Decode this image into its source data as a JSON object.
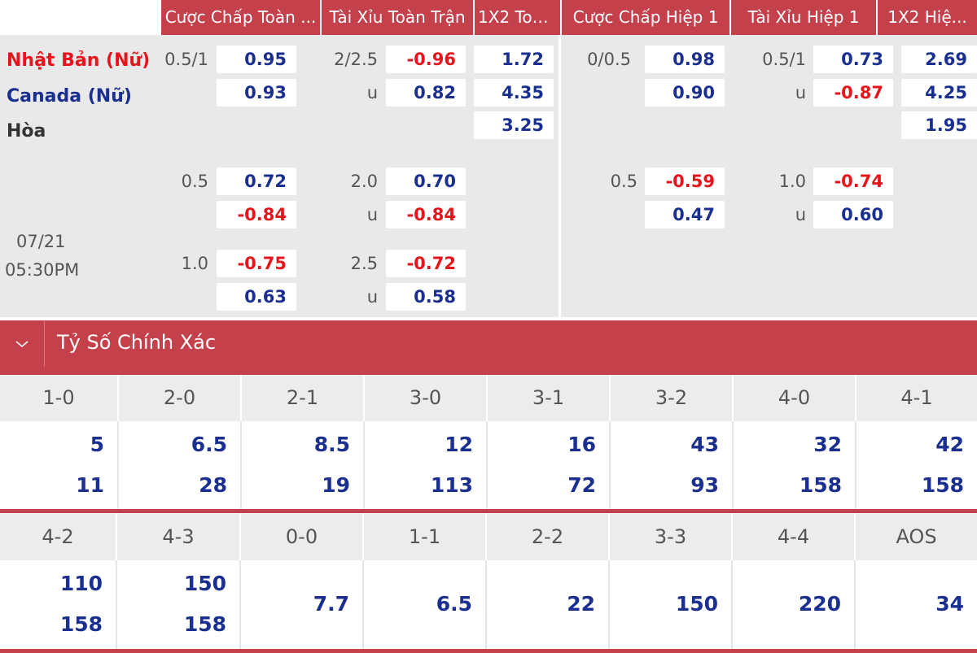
{
  "headers": [
    "Cược Chấp Toàn ...",
    "Tài Xỉu Toàn Trận",
    "1X2 Toà...",
    "Cược Chấp Hiệp 1",
    "Tài Xỉu Hiệp 1",
    "1X2 Hiệ..."
  ],
  "teams": {
    "home": "Nhật Bản (Nữ)",
    "away": "Canada (Nữ)",
    "draw": "Hòa"
  },
  "match_date": "07/21",
  "match_time": "05:30PM",
  "full_time": {
    "handicap": [
      {
        "line": "0.5/1",
        "home": "0.95",
        "away": "0.93"
      },
      {
        "line": "0.5",
        "home": "0.72",
        "away": "-0.84"
      },
      {
        "line": "1.0",
        "home": "-0.75",
        "away": "0.63"
      }
    ],
    "over_under": [
      {
        "line": "2/2.5",
        "over": "-0.96",
        "under_label": "u",
        "under": "0.82"
      },
      {
        "line": "2.0",
        "over": "0.70",
        "under_label": "u",
        "under": "-0.84"
      },
      {
        "line": "2.5",
        "over": "-0.72",
        "under_label": "u",
        "under": "0.58"
      }
    ],
    "x12": {
      "home": "1.72",
      "away": "4.35",
      "draw": "3.25"
    }
  },
  "first_half": {
    "handicap": [
      {
        "line": "0/0.5",
        "home": "0.98",
        "away": "0.90"
      },
      {
        "line": "0.5",
        "home": "-0.59",
        "away": "0.47"
      }
    ],
    "over_under": [
      {
        "line": "0.5/1",
        "over": "0.73",
        "under_label": "u",
        "under": "-0.87"
      },
      {
        "line": "1.0",
        "over": "-0.74",
        "under_label": "u",
        "under": "0.60"
      }
    ],
    "x12": {
      "home": "2.69",
      "away": "4.25",
      "draw": "1.95"
    }
  },
  "exact_score": {
    "title": "Tỷ Số Chính Xác",
    "row1": [
      {
        "score": "1-0",
        "a": "5",
        "b": "11"
      },
      {
        "score": "2-0",
        "a": "6.5",
        "b": "28"
      },
      {
        "score": "2-1",
        "a": "8.5",
        "b": "19"
      },
      {
        "score": "3-0",
        "a": "12",
        "b": "113"
      },
      {
        "score": "3-1",
        "a": "16",
        "b": "72"
      },
      {
        "score": "3-2",
        "a": "43",
        "b": "93"
      },
      {
        "score": "4-0",
        "a": "32",
        "b": "158"
      },
      {
        "score": "4-1",
        "a": "42",
        "b": "158"
      }
    ],
    "row2": [
      {
        "score": "4-2",
        "a": "110",
        "b": "158"
      },
      {
        "score": "4-3",
        "a": "150",
        "b": "158"
      },
      {
        "score": "0-0",
        "m": "7.7"
      },
      {
        "score": "1-1",
        "m": "6.5"
      },
      {
        "score": "2-2",
        "m": "22"
      },
      {
        "score": "3-3",
        "m": "150"
      },
      {
        "score": "4-4",
        "m": "220"
      },
      {
        "score": "AOS",
        "m": "34"
      }
    ]
  },
  "colors": {
    "band": "#c4404b",
    "positive": "#1a2f8f",
    "negative": "#e8141c",
    "home": "#e8141c",
    "away": "#1a2f8f"
  },
  "icons": {
    "collapse": "chevron-down-icon"
  }
}
